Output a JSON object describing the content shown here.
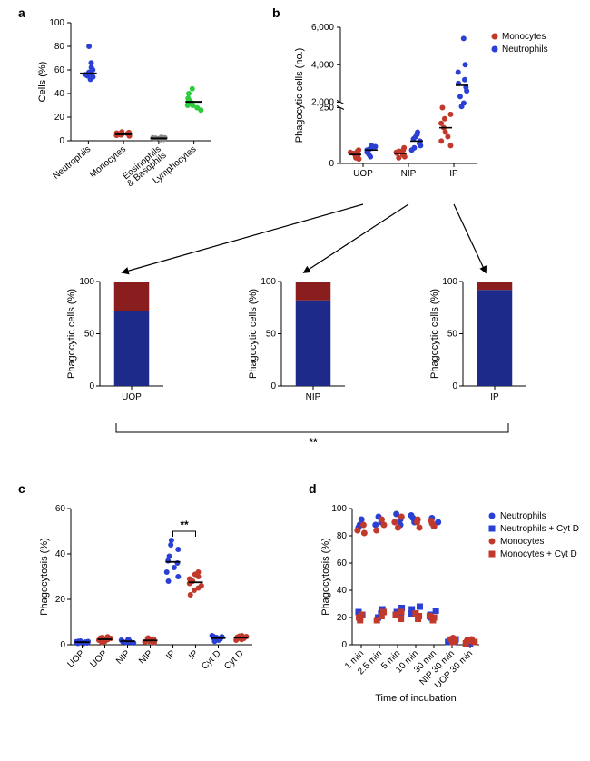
{
  "colors": {
    "neutrophil": "#2a3fd3",
    "monocyte": "#c0392b",
    "eosino": "#888888",
    "lympho": "#2ecc40",
    "bar_red": "#8a1d1d",
    "bar_blue": "#1e2a8a",
    "black": "#000000"
  },
  "panel_labels": {
    "a": "a",
    "b": "b",
    "c": "c",
    "d": "d"
  },
  "panel_a": {
    "y_title": "Cells (%)",
    "ylim": [
      0,
      100
    ],
    "ytick_step": 20,
    "categories": [
      "Neutrophils",
      "Monocytes",
      "Eosinophils\n& Basophils",
      "Lymphocytes"
    ],
    "cat_colors": [
      "neutrophil",
      "monocyte",
      "eosino",
      "lympho"
    ],
    "dot_r": 3,
    "data": [
      [
        52,
        54,
        55,
        56,
        57,
        57,
        58,
        60,
        62,
        66,
        80
      ],
      [
        4,
        4.5,
        5,
        5,
        5.5,
        5.5,
        6,
        6,
        6.5,
        7,
        7.5
      ],
      [
        1,
        1.2,
        1.5,
        1.5,
        1.8,
        2,
        2,
        2.2,
        2.5,
        2.5,
        3
      ],
      [
        26,
        28,
        30,
        30,
        32,
        33,
        33,
        34,
        36,
        40,
        44
      ]
    ]
  },
  "panel_b": {
    "y_title": "Phagocytic cells (no.)",
    "legend": [
      {
        "label": "Monocytes",
        "color": "monocyte"
      },
      {
        "label": "Neutrophils",
        "color": "neutrophil"
      }
    ],
    "x_labels": [
      "UOP",
      "NIP",
      "IP"
    ],
    "break": {
      "low_max": 250,
      "high_min": 2000,
      "high_max": 6000
    },
    "ytick_low": [
      0,
      250
    ],
    "ytick_high": [
      2000,
      4000,
      6000
    ],
    "dot_r": 3,
    "series": [
      {
        "color": "monocyte",
        "group": 0,
        "vals": [
          20,
          25,
          30,
          35,
          40,
          45,
          50,
          55,
          60
        ]
      },
      {
        "color": "neutrophil",
        "group": 0,
        "vals": [
          30,
          40,
          50,
          55,
          60,
          65,
          70,
          75,
          80
        ]
      },
      {
        "color": "monocyte",
        "group": 1,
        "vals": [
          25,
          30,
          35,
          40,
          45,
          50,
          55,
          60,
          70
        ]
      },
      {
        "color": "neutrophil",
        "group": 1,
        "vals": [
          60,
          70,
          80,
          90,
          100,
          110,
          120,
          130,
          140
        ]
      },
      {
        "color": "monocyte",
        "group": 2,
        "vals": [
          80,
          100,
          120,
          140,
          160,
          180,
          200,
          220,
          250
        ]
      },
      {
        "color": "neutrophil",
        "group": 2,
        "vals": [
          600,
          1700,
          2300,
          2600,
          2800,
          3000,
          3200,
          3600,
          4000,
          5400
        ]
      }
    ]
  },
  "sub_bars": {
    "y_title": "Phagocytic cells (%)",
    "ylim": [
      0,
      100
    ],
    "ytick_step": 50,
    "bars": [
      {
        "label": "UOP",
        "blue": 72,
        "red": 28
      },
      {
        "label": "NIP",
        "blue": 82,
        "red": 18
      },
      {
        "label": "IP",
        "blue": 92,
        "red": 8
      }
    ],
    "sig_label": "**"
  },
  "panel_c": {
    "y_title": "Phagocytosis (%)",
    "ylim": [
      0,
      60
    ],
    "ytick_step": 20,
    "x_labels": [
      "UOP",
      "UOP",
      "NIP",
      "NIP",
      "IP",
      "IP",
      "Cyt D",
      "Cyt D"
    ],
    "dot_r": 3,
    "sig_label": "**",
    "groups": [
      {
        "color": "neutrophil",
        "vals": [
          0.5,
          0.6,
          0.8,
          1,
          1.1,
          1.2,
          1.3,
          1.4,
          1.5,
          1.6
        ]
      },
      {
        "color": "monocyte",
        "vals": [
          1,
          1.5,
          2,
          2,
          2.3,
          2.5,
          2.8,
          3,
          3.2,
          3.5
        ]
      },
      {
        "color": "neutrophil",
        "vals": [
          0.8,
          1,
          1.2,
          1.3,
          1.5,
          1.6,
          1.8,
          2,
          2.2,
          2.4
        ]
      },
      {
        "color": "monocyte",
        "vals": [
          1,
          1.2,
          1.5,
          1.5,
          1.8,
          2,
          2.2,
          2.5,
          2.8,
          3
        ]
      },
      {
        "color": "neutrophil",
        "vals": [
          28,
          30,
          32,
          34,
          36,
          37,
          39,
          42,
          44,
          46
        ]
      },
      {
        "color": "monocyte",
        "vals": [
          22,
          24,
          25,
          26,
          27,
          28,
          29,
          30,
          31,
          32
        ]
      },
      {
        "color": "neutrophil",
        "vals": [
          1.5,
          2,
          2.3,
          2.5,
          2.8,
          3,
          3.2,
          3.5,
          3.7,
          4
        ]
      },
      {
        "color": "monocyte",
        "vals": [
          2,
          2.3,
          2.5,
          2.8,
          3,
          3.2,
          3.4,
          3.6,
          3.8,
          4
        ]
      }
    ]
  },
  "panel_d": {
    "y_title": "Phagocytosis (%)",
    "x_title": "Time of incubation",
    "ylim": [
      0,
      100
    ],
    "ytick_step": 20,
    "x_labels": [
      "1 min",
      "2.5 min",
      "5 min",
      "10 min",
      "30 min",
      "NIP 30 min",
      "UOP 30 min"
    ],
    "legend": [
      {
        "label": "Neutrophils",
        "color": "neutrophil",
        "marker": "circle"
      },
      {
        "label": "Neutrophils + Cyt D",
        "color": "neutrophil",
        "marker": "square"
      },
      {
        "label": "Monocytes",
        "color": "monocyte",
        "marker": "circle"
      },
      {
        "label": "Monocytes + Cyt D",
        "color": "monocyte",
        "marker": "square"
      }
    ],
    "dot_r": 3.5,
    "series": [
      {
        "color": "neutrophil",
        "marker": "circle",
        "vals": [
          [
            86,
            88,
            92
          ],
          [
            88,
            90,
            94
          ],
          [
            88,
            92,
            96
          ],
          [
            90,
            93,
            95
          ],
          [
            87,
            90,
            93
          ],
          [
            2,
            3,
            4
          ],
          [
            1,
            2,
            3
          ]
        ]
      },
      {
        "color": "neutrophil",
        "marker": "square",
        "vals": [
          [
            20,
            22,
            24
          ],
          [
            20,
            23,
            26
          ],
          [
            21,
            24,
            27
          ],
          [
            23,
            26,
            28
          ],
          [
            20,
            22,
            25
          ],
          [
            2,
            3,
            4
          ],
          [
            1,
            2,
            3
          ]
        ]
      },
      {
        "color": "monocyte",
        "marker": "circle",
        "vals": [
          [
            82,
            84,
            88
          ],
          [
            84,
            88,
            92
          ],
          [
            86,
            90,
            94
          ],
          [
            86,
            90,
            92
          ],
          [
            87,
            89,
            91
          ],
          [
            3,
            4,
            5
          ],
          [
            2,
            3,
            4
          ]
        ]
      },
      {
        "color": "monocyte",
        "marker": "square",
        "vals": [
          [
            18,
            20,
            22
          ],
          [
            18,
            21,
            24
          ],
          [
            19,
            22,
            24
          ],
          [
            19,
            21,
            23
          ],
          [
            18,
            20,
            21
          ],
          [
            2,
            3,
            4
          ],
          [
            1,
            2,
            3
          ]
        ]
      }
    ]
  }
}
